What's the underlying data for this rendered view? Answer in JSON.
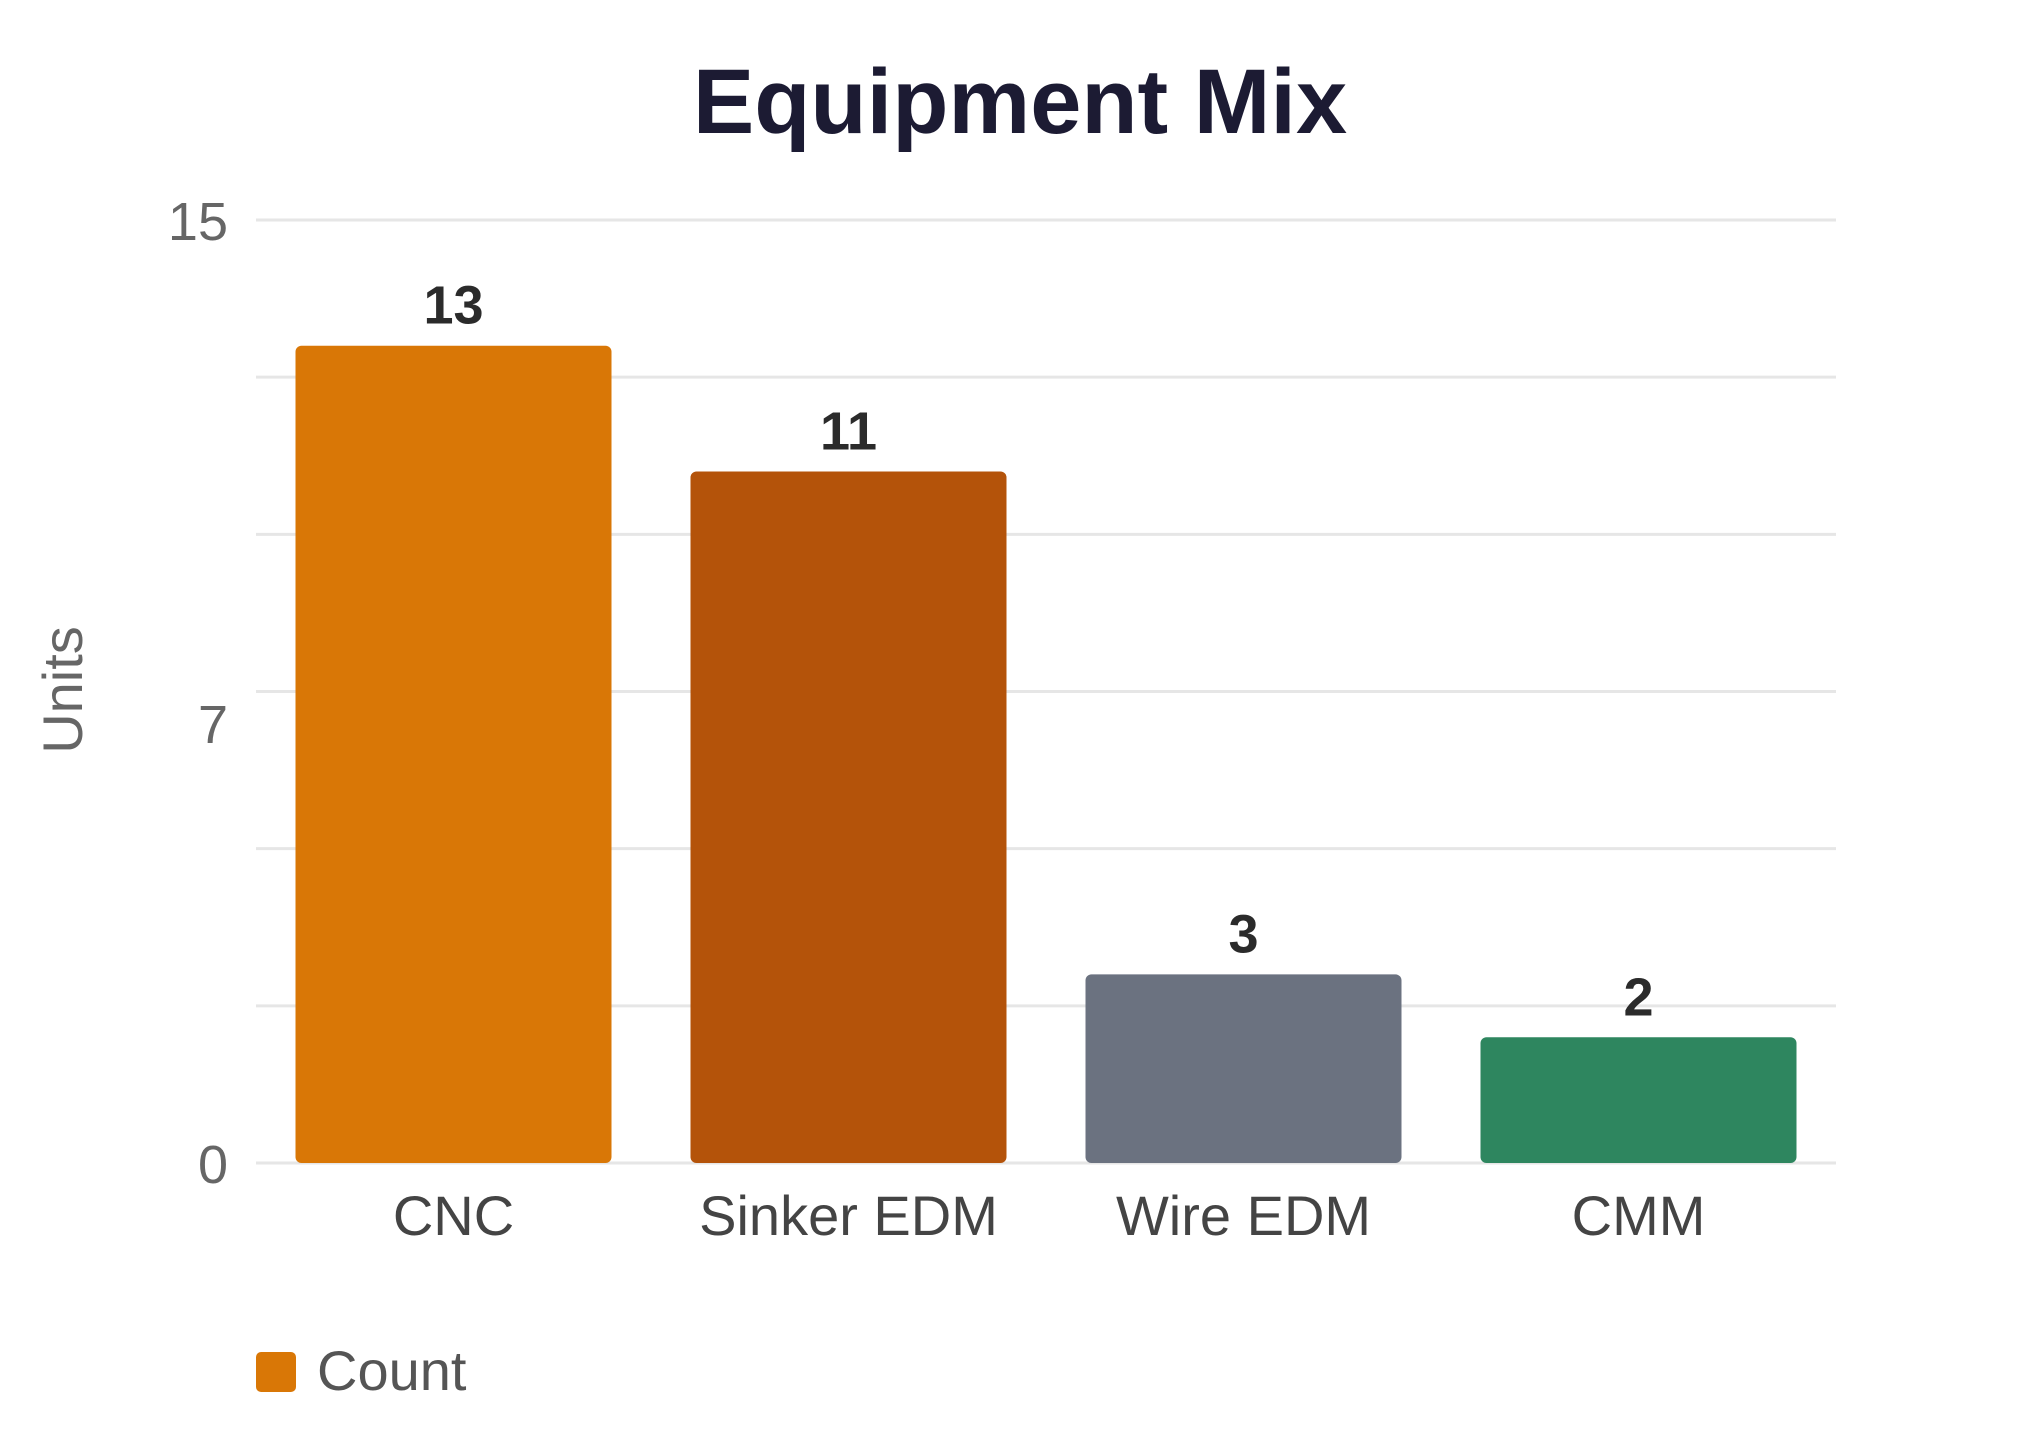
{
  "chart_data": {
    "type": "bar",
    "title": "Equipment Mix",
    "xlabel": "",
    "ylabel": "Units",
    "categories": [
      "CNC",
      "Sinker EDM",
      "Wire EDM",
      "CMM"
    ],
    "series": [
      {
        "name": "Count",
        "values": [
          13,
          11,
          3,
          2
        ],
        "colors": [
          "#d97706",
          "#b4530a",
          "#6b7280",
          "#2e865f"
        ]
      }
    ],
    "ylim": [
      0,
      15
    ],
    "yticks": [
      0,
      7,
      15
    ],
    "grid": true,
    "legend": {
      "position": "bottom-left",
      "entries": [
        "Count"
      ],
      "color": "#d97706"
    },
    "data_labels": true
  }
}
